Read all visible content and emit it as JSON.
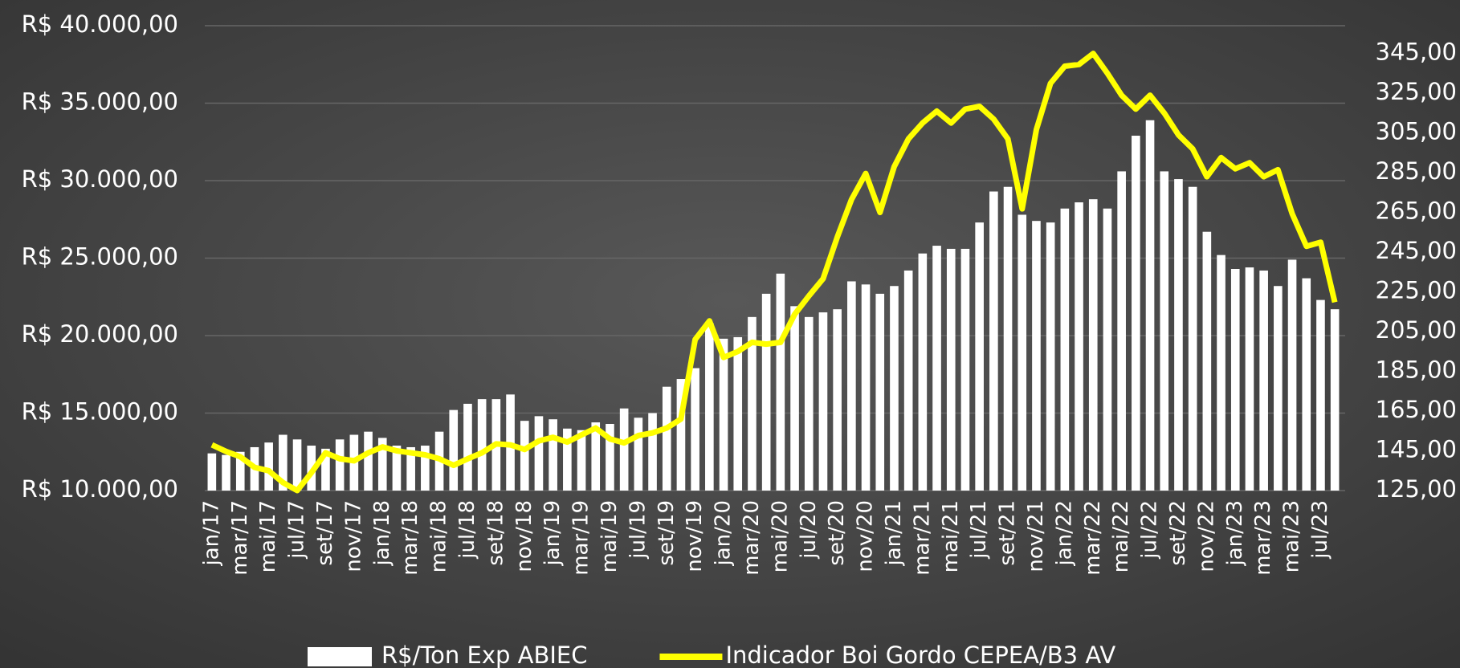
{
  "chart_data": {
    "type": "bar",
    "categories": [
      "jan/17",
      null,
      "mar/17",
      null,
      "mai/17",
      null,
      "jul/17",
      null,
      "set/17",
      null,
      "nov/17",
      null,
      "jan/18",
      null,
      "mar/18",
      null,
      "mai/18",
      null,
      "jul/18",
      null,
      "set/18",
      null,
      "nov/18",
      null,
      "jan/19",
      null,
      "mar/19",
      null,
      "mai/19",
      null,
      "jul/19",
      null,
      "set/19",
      null,
      "nov/19",
      null,
      "jan/20",
      null,
      "mar/20",
      null,
      "mai/20",
      null,
      "jul/20",
      null,
      "set/20",
      null,
      "nov/20",
      null,
      "jan/21",
      null,
      "mar/21",
      null,
      "mai/21",
      null,
      "jul/21",
      null,
      "set/21",
      null,
      "nov/21",
      null,
      "jan/22",
      null,
      "mar/22",
      null,
      "mai/22",
      null,
      "jul/22",
      null,
      "set/22",
      null,
      "nov/22",
      null,
      "jan/23",
      null,
      "mar/23",
      null,
      "mai/23",
      null,
      "jul/23",
      null
    ],
    "series": [
      {
        "name": "R$/Ton Exp ABIEC",
        "type": "bar",
        "axis": "y",
        "color": "#ffffff",
        "values": [
          12400,
          12300,
          12500,
          12800,
          13100,
          13600,
          13300,
          12900,
          12700,
          13300,
          13600,
          13800,
          13400,
          12900,
          12800,
          12900,
          13800,
          15200,
          15600,
          15900,
          15900,
          16200,
          14500,
          14800,
          14600,
          14000,
          13900,
          14400,
          14300,
          15300,
          14700,
          15000,
          16700,
          17200,
          17900,
          20800,
          19800,
          19900,
          21200,
          22700,
          24000,
          21900,
          21200,
          21500,
          21700,
          23500,
          23300,
          22700,
          23200,
          24200,
          25300,
          25800,
          25600,
          25600,
          27300,
          29300,
          29600,
          27800,
          27400,
          27300,
          28200,
          28600,
          28800,
          28200,
          30600,
          32900,
          33900,
          30600,
          30100,
          29600,
          26700,
          25200,
          24300,
          24400,
          24200,
          23200,
          24900,
          23700,
          22300,
          21700
        ]
      },
      {
        "name": "Indicador Boi Gordo CEPEA/B3 AV",
        "type": "line",
        "axis": "y2",
        "color": "#ffff00",
        "values": [
          148,
          144.7,
          142,
          136.7,
          135,
          129,
          125,
          134,
          144,
          141,
          140,
          144,
          147,
          145,
          144,
          143,
          141,
          137.7,
          141,
          144,
          148.5,
          148,
          145.7,
          150,
          151.8,
          149.4,
          153,
          156.5,
          151,
          149,
          152.7,
          154,
          156.5,
          161,
          201,
          210.4,
          192,
          195,
          199.6,
          198.7,
          199.6,
          213.7,
          223,
          231.6,
          252.7,
          271.5,
          284.6,
          265,
          288,
          302,
          310,
          316,
          310,
          317,
          318.4,
          312,
          302,
          266.8,
          306.7,
          330,
          338.6,
          339.5,
          345,
          335,
          324,
          317,
          324,
          315,
          304,
          297,
          283,
          292.6,
          287,
          290,
          283,
          286.5,
          264.4,
          248,
          250,
          219.8
        ]
      }
    ],
    "ylim": [
      10000,
      40000
    ],
    "yticks": [
      {
        "value": 10000,
        "label": "R$ 10.000,00"
      },
      {
        "value": 15000,
        "label": "R$ 15.000,00"
      },
      {
        "value": 20000,
        "label": "R$ 20.000,00"
      },
      {
        "value": 25000,
        "label": "R$ 25.000,00"
      },
      {
        "value": 30000,
        "label": "R$ 30.000,00"
      },
      {
        "value": 35000,
        "label": "R$ 35.000,00"
      },
      {
        "value": 40000,
        "label": "R$ 40.000,00"
      }
    ],
    "y2lim": [
      125,
      359
    ],
    "y2ticks": [
      {
        "value": 125,
        "label": "125,00"
      },
      {
        "value": 145,
        "label": "145,00"
      },
      {
        "value": 165,
        "label": "165,00"
      },
      {
        "value": 185,
        "label": "185,00"
      },
      {
        "value": 205,
        "label": "205,00"
      },
      {
        "value": 225,
        "label": "225,00"
      },
      {
        "value": 245,
        "label": "245,00"
      },
      {
        "value": 265,
        "label": "265,00"
      },
      {
        "value": 285,
        "label": "285,00"
      },
      {
        "value": 305,
        "label": "305,00"
      },
      {
        "value": 325,
        "label": "325,00"
      },
      {
        "value": 345,
        "label": "345,00"
      }
    ],
    "grid": true,
    "legend": "bottom"
  }
}
